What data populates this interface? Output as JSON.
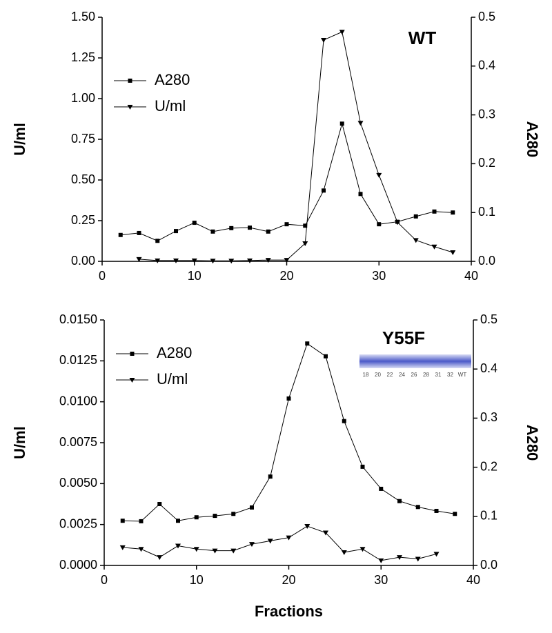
{
  "chart_data": [
    {
      "type": "line",
      "annotation": "WT",
      "ylabel": "U/ml",
      "y2label": "A280",
      "legend": "upper left",
      "x": [
        2,
        4,
        6,
        8,
        10,
        12,
        14,
        16,
        18,
        20,
        22,
        24,
        26,
        28,
        30,
        32,
        34,
        36,
        38
      ],
      "xlim": [
        0,
        40
      ],
      "xticks": [
        0,
        10,
        20,
        30,
        40
      ],
      "ylim": [
        0,
        1.5
      ],
      "yticks": [
        {
          "value": 0,
          "label": "0.00"
        },
        0.25,
        {
          "value": 0.5,
          "label": "0.50"
        },
        0.75,
        {
          "value": 1,
          "label": "1.00"
        },
        1.25,
        {
          "value": 1.5,
          "label": "1.50"
        }
      ],
      "y2lim": [
        0,
        0.5
      ],
      "y2ticks": [
        {
          "value": 0,
          "label": "0.0"
        },
        0.1,
        0.2,
        0.3,
        0.4,
        0.5
      ],
      "series": [
        {
          "name": "A280",
          "color": "#000000",
          "marker": "square",
          "axis": "y2",
          "values": [
            0.054,
            0.058,
            0.042,
            0.062,
            0.079,
            0.061,
            0.068,
            0.069,
            0.061,
            0.076,
            0.073,
            0.145,
            0.282,
            0.138,
            0.076,
            0.081,
            0.092,
            0.102,
            0.1
          ]
        },
        {
          "name": "U/ml",
          "color": "#000000",
          "marker": "triangle-down",
          "axis": "y",
          "values": [
            null,
            0.013,
            0.005,
            0.005,
            0.005,
            0.003,
            0.003,
            0.005,
            0.008,
            0.008,
            0.11,
            1.36,
            1.41,
            0.85,
            0.53,
            0.24,
            0.13,
            0.09,
            0.055
          ]
        }
      ]
    },
    {
      "type": "line",
      "annotation": "Y55F",
      "ylabel": "U/ml",
      "y2label": "A280",
      "xlabel": "Fractions",
      "legend": "upper left",
      "inset_labels": [
        "18",
        "20",
        "22",
        "24",
        "26",
        "28",
        "31",
        "32",
        "WT"
      ],
      "x": [
        2,
        4,
        6,
        8,
        10,
        12,
        14,
        16,
        18,
        20,
        22,
        24,
        26,
        28,
        30,
        32,
        34,
        36,
        38
      ],
      "xlim": [
        0,
        40
      ],
      "xticks": [
        0,
        10,
        20,
        30,
        40
      ],
      "ylim": [
        0,
        0.015
      ],
      "yticks": [
        {
          "value": 0,
          "label": "0.0000"
        },
        0.0025,
        {
          "value": 0.005,
          "label": "0.0050"
        },
        0.0075,
        {
          "value": 0.01,
          "label": "0.0100"
        },
        0.0125,
        {
          "value": 0.015,
          "label": "0.0150"
        }
      ],
      "y2lim": [
        0,
        0.5
      ],
      "y2ticks": [
        {
          "value": 0,
          "label": "0.0"
        },
        0.1,
        0.2,
        0.3,
        0.4,
        0.5
      ],
      "series": [
        {
          "name": "A280",
          "color": "#000000",
          "marker": "square",
          "axis": "y2",
          "values": [
            0.091,
            0.09,
            0.125,
            0.091,
            0.098,
            0.101,
            0.105,
            0.118,
            0.181,
            0.34,
            0.452,
            0.426,
            0.294,
            0.201,
            0.156,
            0.131,
            0.119,
            0.111,
            0.105
          ]
        },
        {
          "name": "U/ml",
          "color": "#000000",
          "marker": "triangle-down",
          "axis": "y",
          "values": [
            0.0011,
            0.001,
            0.0005,
            0.0012,
            0.001,
            0.0009,
            0.0009,
            0.0013,
            0.0015,
            0.0017,
            0.0024,
            0.002,
            0.0008,
            0.001,
            0.0003,
            0.0005,
            0.0004,
            0.0007,
            null
          ]
        }
      ]
    }
  ]
}
